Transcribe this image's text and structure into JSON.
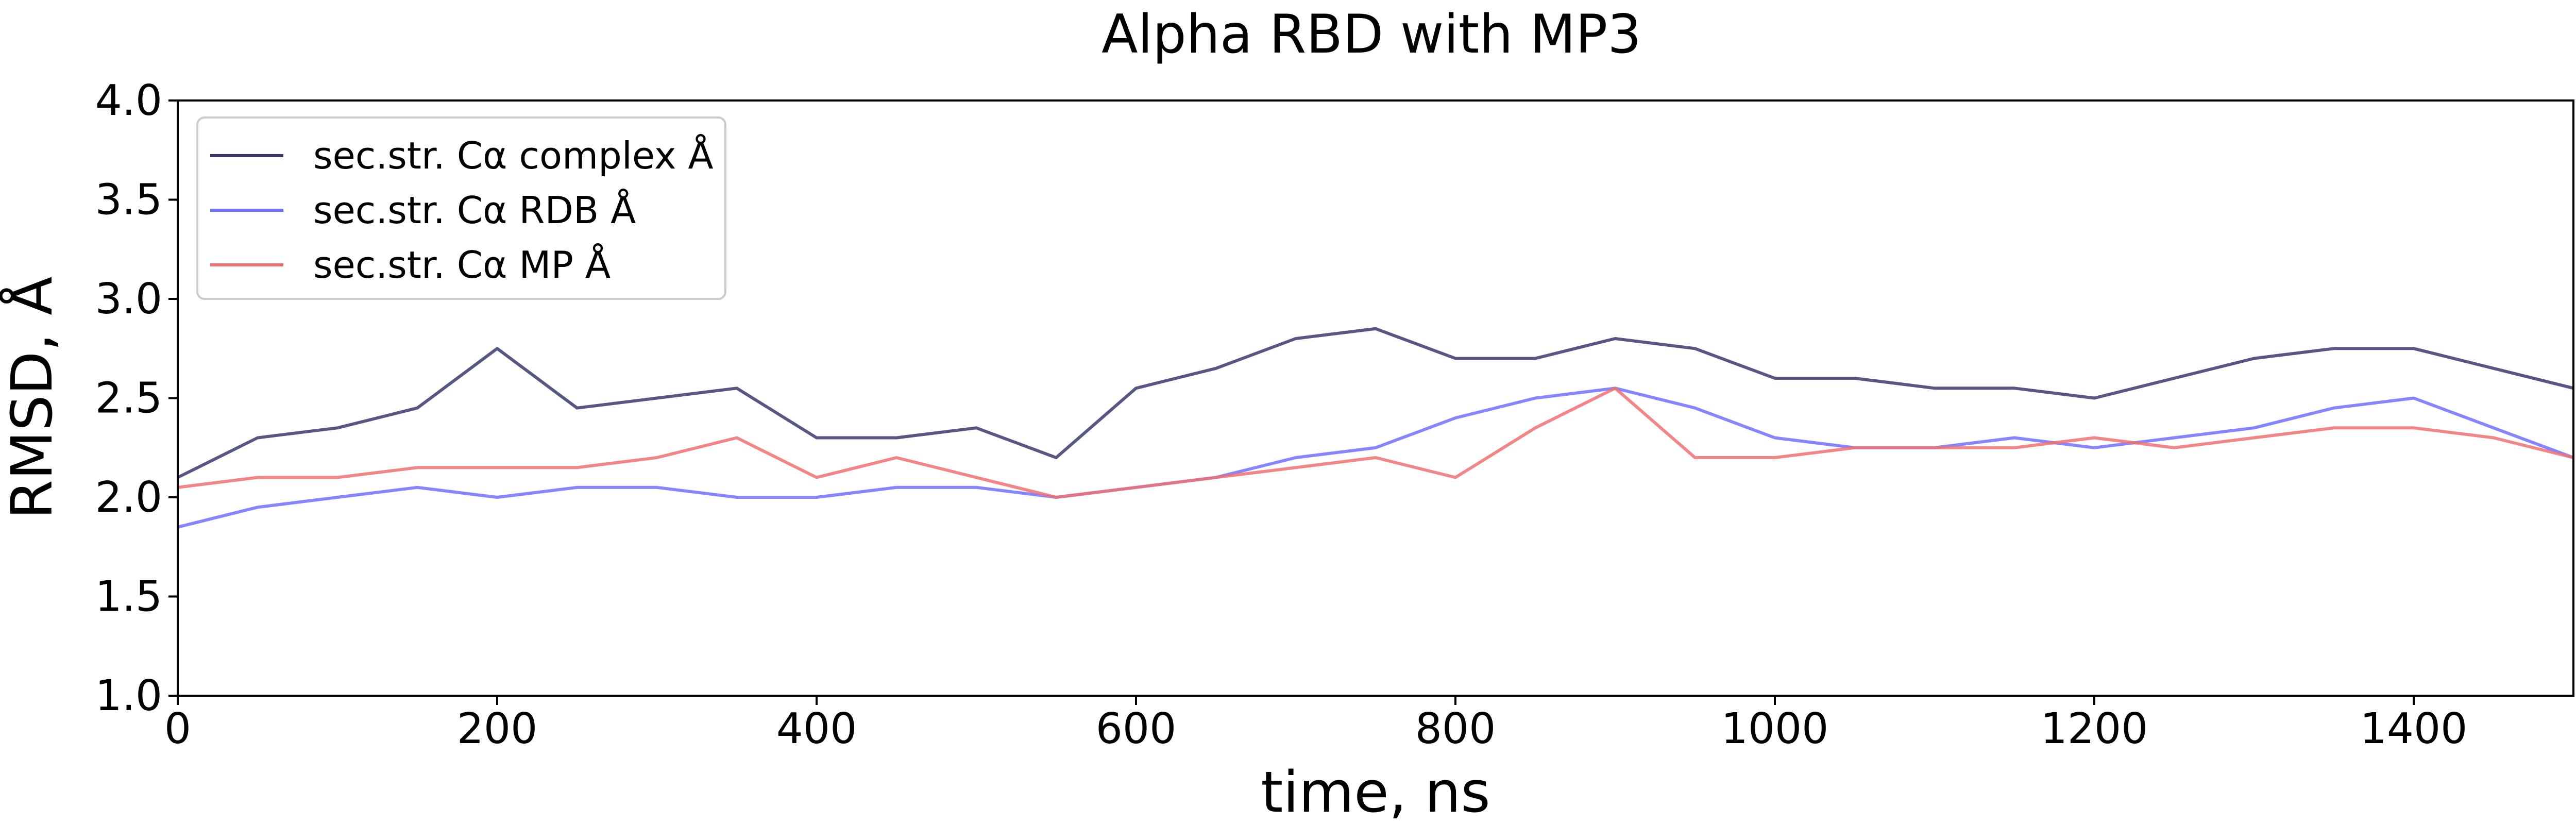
{
  "chart_data": {
    "type": "line",
    "title": "Alpha RBD with MP3",
    "xlabel": "time, ns",
    "ylabel": "RMSD, Å",
    "xlim": [
      0,
      1500
    ],
    "ylim": [
      1.0,
      4.0
    ],
    "x_ticks": [
      0,
      200,
      400,
      600,
      800,
      1000,
      1200,
      1400
    ],
    "y_ticks": [
      1.0,
      1.5,
      2.0,
      2.5,
      3.0,
      3.5,
      4.0
    ],
    "x_tick_labels": [
      "0",
      "200",
      "400",
      "600",
      "800",
      "1000",
      "1200",
      "1400"
    ],
    "y_tick_labels": [
      "1.0",
      "1.5",
      "2.0",
      "2.5",
      "3.0",
      "3.5",
      "4.0"
    ],
    "grid": false,
    "legend_position": "top-left",
    "x": [
      0,
      50,
      100,
      150,
      200,
      250,
      300,
      350,
      400,
      450,
      500,
      550,
      600,
      650,
      700,
      750,
      800,
      850,
      900,
      950,
      1000,
      1050,
      1100,
      1150,
      1200,
      1250,
      1300,
      1350,
      1400,
      1450,
      1500
    ],
    "series": [
      {
        "name": "sec.str. Cα complex Å",
        "color": "#3a3a6e",
        "values": [
          2.1,
          2.3,
          2.35,
          2.45,
          2.75,
          2.45,
          2.5,
          2.55,
          2.3,
          2.3,
          2.35,
          2.2,
          2.55,
          2.65,
          2.8,
          2.85,
          2.7,
          2.7,
          2.8,
          2.75,
          2.6,
          2.6,
          2.55,
          2.55,
          2.5,
          2.6,
          2.7,
          2.75,
          2.75,
          2.65,
          2.55
        ]
      },
      {
        "name": "sec.str. Cα RDB Å",
        "color": "#7070ff",
        "values": [
          1.85,
          1.95,
          2.0,
          2.05,
          2.0,
          2.05,
          2.05,
          2.0,
          2.0,
          2.05,
          2.05,
          2.0,
          2.05,
          2.1,
          2.2,
          2.25,
          2.4,
          2.5,
          2.55,
          2.45,
          2.3,
          2.25,
          2.25,
          2.3,
          2.25,
          2.3,
          2.35,
          2.45,
          2.5,
          2.35,
          2.2
        ]
      },
      {
        "name": "sec.str. Cα MP Å",
        "color": "#f07070",
        "values": [
          2.05,
          2.1,
          2.1,
          2.15,
          2.15,
          2.15,
          2.2,
          2.3,
          2.1,
          2.2,
          2.1,
          2.0,
          2.05,
          2.1,
          2.15,
          2.2,
          2.1,
          2.35,
          2.55,
          2.2,
          2.2,
          2.25,
          2.25,
          2.25,
          2.3,
          2.25,
          2.3,
          2.35,
          2.35,
          2.3,
          2.2
        ]
      }
    ]
  }
}
